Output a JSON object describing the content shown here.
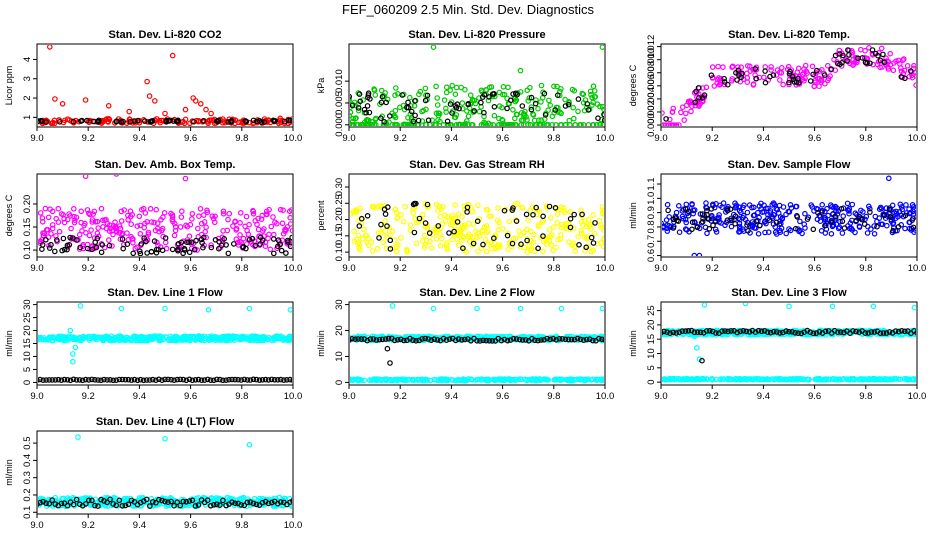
{
  "figure_title": "FEF_060209  2.5 Min. Std. Dev. Diagnostics",
  "colors": {
    "red": "#ff0000",
    "green": "#00c800",
    "magenta": "#ff00ff",
    "yellow": "#ffff00",
    "blue": "#0000ff",
    "cyan": "#00ffff",
    "black": "#000000"
  },
  "chart_data": [
    {
      "id": "p1",
      "type": "scatter",
      "title": "Stan. Dev. Li-820 CO2",
      "xlabel": "",
      "ylabel": "Licor ppm",
      "xlim": [
        9.0,
        10.0
      ],
      "ylim": [
        0.5,
        4.8
      ],
      "xticks": [
        9.0,
        9.2,
        9.4,
        9.6,
        9.8,
        10.0
      ],
      "xtick_labels": [
        "9.0",
        "9.2",
        "9.4",
        "9.6",
        "9.8",
        "10.0"
      ],
      "yticks": [
        1,
        2,
        3,
        4
      ],
      "ytick_labels": [
        "1",
        "2",
        "3",
        "4"
      ],
      "series": [
        {
          "name": "primary",
          "color": "red",
          "x": [
            9.05,
            9.07,
            9.1,
            9.19,
            9.28,
            9.36,
            9.43,
            9.44,
            9.46,
            9.5,
            9.53,
            9.58,
            9.61,
            9.62,
            9.64,
            9.66,
            9.68,
            9.95
          ],
          "y": [
            4.65,
            1.95,
            1.7,
            1.9,
            1.6,
            1.3,
            2.85,
            2.1,
            1.85,
            1.2,
            4.2,
            1.4,
            2.0,
            1.85,
            1.7,
            1.4,
            1.2,
            0.95
          ],
          "band": {
            "x_start": 9.0,
            "x_end": 10.0,
            "center": 0.8,
            "spread": 0.12,
            "count": 150,
            "seed": 11
          }
        },
        {
          "name": "secondary",
          "color": "black",
          "band": {
            "x_start": 9.0,
            "x_end": 10.0,
            "center": 0.8,
            "spread": 0.05,
            "count": 60,
            "seed": 12
          }
        }
      ]
    },
    {
      "id": "p2",
      "type": "scatter",
      "title": "Stan. Dev. Li-820 Pressure",
      "xlabel": "",
      "ylabel": "kPa",
      "xlim": [
        9.0,
        10.0
      ],
      "ylim": [
        -0.0005,
        0.0185
      ],
      "xticks": [
        9.0,
        9.2,
        9.4,
        9.6,
        9.8,
        10.0
      ],
      "xtick_labels": [
        "9.0",
        "9.2",
        "9.4",
        "9.6",
        "9.8",
        "10.0"
      ],
      "yticks": [
        0.0,
        0.005,
        0.01
      ],
      "ytick_labels": [
        "0.000",
        "0.005",
        "0.010"
      ],
      "series": [
        {
          "name": "primary",
          "color": "green",
          "x": [
            9.33,
            9.67,
            9.99
          ],
          "y": [
            0.0178,
            0.0124,
            0.0178
          ],
          "band": {
            "x_start": 9.0,
            "x_end": 10.0,
            "center": 0.0045,
            "spread": 0.0045,
            "count": 230,
            "seed": 21,
            "floor": 0.0
          },
          "band2": {
            "x_start": 9.0,
            "x_end": 10.0,
            "center": 0.0,
            "spread": 0.0,
            "count": 110,
            "seed": 22
          }
        },
        {
          "name": "secondary",
          "color": "black",
          "band": {
            "x_start": 9.0,
            "x_end": 10.0,
            "center": 0.004,
            "spread": 0.0035,
            "count": 70,
            "seed": 23,
            "floor": 0.0
          }
        }
      ]
    },
    {
      "id": "p3",
      "type": "scatter",
      "title": "Stan. Dev. Li-820 Temp.",
      "xlabel": "",
      "ylabel": "degrees C",
      "xlim": [
        9.0,
        10.0
      ],
      "ylim": [
        -0.0003,
        0.0124
      ],
      "xticks": [
        9.0,
        9.2,
        9.4,
        9.6,
        9.8,
        10.0
      ],
      "xtick_labels": [
        "9.0",
        "9.2",
        "9.4",
        "9.6",
        "9.8",
        "10.0"
      ],
      "yticks": [
        0.0,
        0.002,
        0.004,
        0.006,
        0.008,
        0.01,
        0.012
      ],
      "ytick_labels": [
        "0.000",
        "0.002",
        "0.004",
        "0.006",
        "0.008",
        "0.010",
        "0.012"
      ],
      "series": [
        {
          "name": "primary",
          "color": "magenta",
          "x": [
            9.0,
            9.01,
            9.02,
            9.03,
            9.04,
            9.05,
            9.06,
            9.07
          ],
          "y": [
            0.0,
            0.0,
            0.0,
            0.0,
            0.0,
            0.0,
            0.0,
            0.0
          ],
          "band": {
            "x_start": 9.0,
            "x_end": 10.0,
            "center": 0.0,
            "spread": 0.0016,
            "count": 210,
            "seed": 31,
            "trend": "p3"
          }
        },
        {
          "name": "secondary",
          "color": "black",
          "band": {
            "x_start": 9.0,
            "x_end": 10.0,
            "center": 0.0,
            "spread": 0.0014,
            "count": 60,
            "seed": 32,
            "trend": "p3"
          }
        }
      ]
    },
    {
      "id": "p4",
      "type": "scatter",
      "title": "Stan. Dev. Amb. Box Temp.",
      "xlabel": "",
      "ylabel": "degrees C",
      "xlim": [
        9.0,
        10.0
      ],
      "ylim": [
        0.085,
        0.265
      ],
      "xticks": [
        9.0,
        9.2,
        9.4,
        9.6,
        9.8,
        10.0
      ],
      "xtick_labels": [
        "9.0",
        "9.2",
        "9.4",
        "9.6",
        "9.8",
        "10.0"
      ],
      "yticks": [
        0.1,
        0.15,
        0.2
      ],
      "ytick_labels": [
        "0.10",
        "0.15",
        "0.20"
      ],
      "series": [
        {
          "name": "primary",
          "color": "magenta",
          "x": [
            9.19,
            9.31,
            9.58
          ],
          "y": [
            0.26,
            0.265,
            0.255
          ],
          "band": {
            "x_start": 9.0,
            "x_end": 10.0,
            "center": 0.145,
            "spread": 0.045,
            "count": 300,
            "seed": 41
          }
        },
        {
          "name": "secondary",
          "color": "black",
          "band": {
            "x_start": 9.0,
            "x_end": 10.0,
            "center": 0.11,
            "spread": 0.018,
            "count": 90,
            "seed": 42
          }
        }
      ]
    },
    {
      "id": "p5",
      "type": "scatter",
      "title": "Stan. Dev. Gas Stream RH",
      "xlabel": "",
      "ylabel": "percent",
      "xlim": [
        9.0,
        10.0
      ],
      "ylim": [
        0.085,
        0.34
      ],
      "xticks": [
        9.0,
        9.2,
        9.4,
        9.6,
        9.8,
        10.0
      ],
      "xtick_labels": [
        "9.0",
        "9.2",
        "9.4",
        "9.6",
        "9.8",
        "10.0"
      ],
      "yticks": [
        0.1,
        0.15,
        0.2,
        0.25,
        0.3
      ],
      "ytick_labels": [
        "0.10",
        "0.15",
        "0.20",
        "0.25",
        "0.30"
      ],
      "series": [
        {
          "name": "primary",
          "color": "yellow",
          "band": {
            "x_start": 9.0,
            "x_end": 10.0,
            "center": 0.175,
            "spread": 0.075,
            "count": 320,
            "seed": 51
          }
        },
        {
          "name": "secondary",
          "color": "black",
          "band": {
            "x_start": 9.0,
            "x_end": 10.0,
            "center": 0.18,
            "spread": 0.07,
            "count": 55,
            "seed": 52
          }
        }
      ]
    },
    {
      "id": "p6",
      "type": "scatter",
      "title": "Stan. Dev. Sample Flow",
      "xlabel": "",
      "ylabel": "ml/min",
      "xlim": [
        9.0,
        10.0
      ],
      "ylim": [
        0.59,
        1.17
      ],
      "xticks": [
        9.0,
        9.2,
        9.4,
        9.6,
        9.8,
        10.0
      ],
      "xtick_labels": [
        "9.0",
        "9.2",
        "9.4",
        "9.6",
        "9.8",
        "10.0"
      ],
      "yticks": [
        0.6,
        0.7,
        0.8,
        0.9,
        1.0,
        1.1
      ],
      "ytick_labels": [
        "0.6",
        "0.7",
        "0.8",
        "0.9",
        "1.0",
        "1.1"
      ],
      "series": [
        {
          "name": "primary",
          "color": "blue",
          "x": [
            9.13,
            9.15,
            9.89
          ],
          "y": [
            0.6,
            0.6,
            1.14
          ],
          "band": {
            "x_start": 9.0,
            "x_end": 10.0,
            "center": 0.86,
            "spread": 0.11,
            "count": 330,
            "seed": 61
          }
        },
        {
          "name": "secondary",
          "color": "black",
          "band": {
            "x_start": 9.0,
            "x_end": 10.0,
            "center": 0.85,
            "spread": 0.08,
            "count": 60,
            "seed": 62
          }
        }
      ]
    },
    {
      "id": "p7",
      "type": "scatter",
      "title": "Stan. Dev. Line 1 Flow",
      "xlabel": "",
      "ylabel": "ml/min",
      "xlim": [
        9.0,
        10.0
      ],
      "ylim": [
        -1,
        31
      ],
      "xticks": [
        9.0,
        9.2,
        9.4,
        9.6,
        9.8,
        10.0
      ],
      "xtick_labels": [
        "9.0",
        "9.2",
        "9.4",
        "9.6",
        "9.8",
        "10.0"
      ],
      "yticks": [
        0,
        5,
        10,
        15,
        20,
        25,
        30
      ],
      "ytick_labels": [
        "0",
        "5",
        "10",
        "15",
        "20",
        "25",
        "30"
      ],
      "series": [
        {
          "name": "primary",
          "color": "cyan",
          "x": [
            9.13,
            9.14,
            9.14,
            9.15,
            9.17,
            9.33,
            9.5,
            9.67,
            9.83,
            9.99
          ],
          "y": [
            20.0,
            11.0,
            8.0,
            13.5,
            29.5,
            28.5,
            28.5,
            28.0,
            28.5,
            28.0
          ],
          "band": {
            "x_start": 9.0,
            "x_end": 10.0,
            "center": 17.0,
            "spread": 0.9,
            "count": 420,
            "seed": 71
          }
        },
        {
          "name": "secondary",
          "color": "black",
          "band": {
            "x_start": 9.0,
            "x_end": 10.0,
            "center": 1.0,
            "spread": 0.2,
            "count": 85,
            "seed": 72,
            "regular": true
          }
        }
      ]
    },
    {
      "id": "p8",
      "type": "scatter",
      "title": "Stan. Dev. Line 2 Flow",
      "xlabel": "",
      "ylabel": "ml/min",
      "xlim": [
        9.0,
        10.0
      ],
      "ylim": [
        -1,
        31
      ],
      "xticks": [
        9.0,
        9.2,
        9.4,
        9.6,
        9.8,
        10.0
      ],
      "xtick_labels": [
        "9.0",
        "9.2",
        "9.4",
        "9.6",
        "9.8",
        "10.0"
      ],
      "yticks": [
        0,
        10,
        20,
        30
      ],
      "ytick_labels": [
        "0",
        "10",
        "20",
        "30"
      ],
      "series": [
        {
          "name": "primary",
          "color": "cyan",
          "x": [
            9.17,
            9.33,
            9.5,
            9.67,
            9.83,
            9.99
          ],
          "y": [
            29.5,
            28.5,
            28.5,
            28.5,
            28.5,
            28.5
          ],
          "band": {
            "x_start": 9.0,
            "x_end": 10.0,
            "center": 17.0,
            "spread": 0.8,
            "count": 380,
            "seed": 81
          },
          "band2": {
            "x_start": 9.0,
            "x_end": 10.0,
            "center": 1.0,
            "spread": 0.3,
            "count": 260,
            "seed": 82
          }
        },
        {
          "name": "secondary",
          "color": "black",
          "x": [
            9.15,
            9.16
          ],
          "y": [
            13.0,
            7.5
          ],
          "band": {
            "x_start": 9.0,
            "x_end": 10.0,
            "center": 16.5,
            "spread": 0.5,
            "count": 85,
            "seed": 83,
            "regular": true
          }
        }
      ]
    },
    {
      "id": "p9",
      "type": "scatter",
      "title": "Stan. Dev. Line 3 Flow",
      "xlabel": "",
      "ylabel": "ml/min",
      "xlim": [
        9.0,
        10.0
      ],
      "ylim": [
        -1,
        28
      ],
      "xticks": [
        9.0,
        9.2,
        9.4,
        9.6,
        9.8,
        10.0
      ],
      "xtick_labels": [
        "9.0",
        "9.2",
        "9.4",
        "9.6",
        "9.8",
        "10.0"
      ],
      "yticks": [
        0,
        5,
        10,
        15,
        20,
        25
      ],
      "ytick_labels": [
        "0",
        "5",
        "10",
        "15",
        "20",
        "25"
      ],
      "series": [
        {
          "name": "primary",
          "color": "cyan",
          "x": [
            9.13,
            9.14,
            9.15,
            9.17,
            9.33,
            9.5,
            9.67,
            9.83,
            9.99
          ],
          "y": [
            16.0,
            12.0,
            8.0,
            27.0,
            27.5,
            26.5,
            26.5,
            26.5,
            26.0
          ],
          "band": {
            "x_start": 9.0,
            "x_end": 10.0,
            "center": 17.3,
            "spread": 0.8,
            "count": 380,
            "seed": 91
          },
          "band2": {
            "x_start": 9.0,
            "x_end": 10.0,
            "center": 1.0,
            "spread": 0.2,
            "count": 260,
            "seed": 92
          }
        },
        {
          "name": "secondary",
          "color": "black",
          "x": [
            9.16
          ],
          "y": [
            7.5
          ],
          "band": {
            "x_start": 9.0,
            "x_end": 10.0,
            "center": 17.5,
            "spread": 0.5,
            "count": 85,
            "seed": 93,
            "regular": true
          }
        }
      ]
    },
    {
      "id": "p10",
      "type": "scatter",
      "title": "Stan. Dev. Line 4 (LT) Flow",
      "xlabel": "",
      "ylabel": "ml/min",
      "xlim": [
        9.0,
        10.0
      ],
      "ylim": [
        0.09,
        0.57
      ],
      "xticks": [
        9.0,
        9.2,
        9.4,
        9.6,
        9.8,
        10.0
      ],
      "xtick_labels": [
        "9.0",
        "9.2",
        "9.4",
        "9.6",
        "9.8",
        "10.0"
      ],
      "yticks": [
        0.1,
        0.2,
        0.3,
        0.4,
        0.5
      ],
      "ytick_labels": [
        "0.1",
        "0.2",
        "0.3",
        "0.4",
        "0.5"
      ],
      "series": [
        {
          "name": "primary",
          "color": "cyan",
          "x": [
            9.16,
            9.5,
            9.83
          ],
          "y": [
            0.535,
            0.525,
            0.49
          ],
          "band": {
            "x_start": 9.0,
            "x_end": 10.0,
            "center": 0.16,
            "spread": 0.025,
            "count": 420,
            "seed": 101
          }
        },
        {
          "name": "secondary",
          "color": "black",
          "band": {
            "x_start": 9.0,
            "x_end": 10.0,
            "center": 0.155,
            "spread": 0.02,
            "count": 85,
            "seed": 102,
            "regular": true
          }
        }
      ]
    }
  ]
}
